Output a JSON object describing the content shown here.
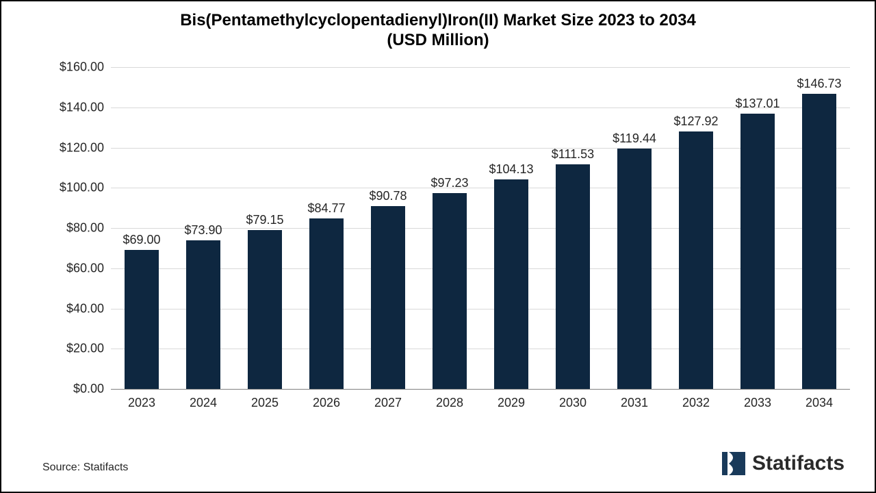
{
  "chart": {
    "type": "bar",
    "title_line1": "Bis(Pentamethylcyclopentadienyl)Iron(II) Market Size 2023 to 2034",
    "title_line2": "(USD Million)",
    "title_fontsize": 24,
    "title_color": "#000000",
    "categories": [
      "2023",
      "2024",
      "2025",
      "2026",
      "2027",
      "2028",
      "2029",
      "2030",
      "2031",
      "2032",
      "2033",
      "2034"
    ],
    "values": [
      69.0,
      73.9,
      79.15,
      84.77,
      90.78,
      97.23,
      104.13,
      111.53,
      119.44,
      127.92,
      137.01,
      146.73
    ],
    "value_labels": [
      "$69.00",
      "$73.90",
      "$79.15",
      "$84.77",
      "$90.78",
      "$97.23",
      "$104.13",
      "$111.53",
      "$119.44",
      "$127.92",
      "$137.01",
      "$146.73"
    ],
    "bar_color": "#0e2740",
    "ylim": [
      0,
      160
    ],
    "ytick_step": 20,
    "ytick_labels": [
      "$0.00",
      "$20.00",
      "$40.00",
      "$60.00",
      "$80.00",
      "$100.00",
      "$120.00",
      "$140.00",
      "$160.00"
    ],
    "label_fontsize": 18,
    "value_fontsize": 18,
    "background_color": "#ffffff",
    "grid_color": "#d9d9d9",
    "baseline_color": "#808080",
    "bar_width_ratio": 0.56,
    "font_family": "Arial, Helvetica, sans-serif"
  },
  "footer": {
    "source": "Source: Statifacts",
    "source_fontsize": 16,
    "brand_name": "Statifacts",
    "brand_fontsize": 30,
    "brand_icon_color": "#193a5a"
  }
}
